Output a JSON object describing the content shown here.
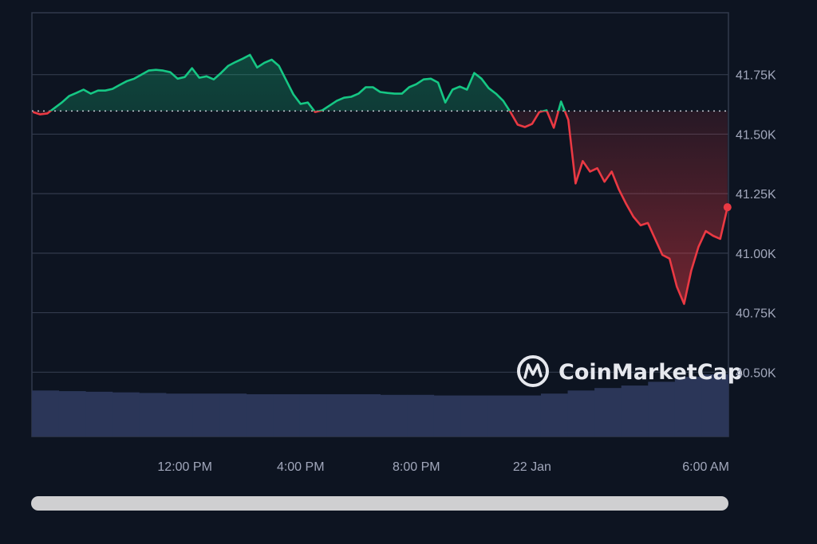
{
  "chart_data": {
    "type": "line",
    "title": "",
    "xlabel": "",
    "ylabel": "",
    "ylim": [
      40230,
      42010
    ],
    "y_ticks": [
      "41.75K",
      "41.50K",
      "41.25K",
      "41.00K",
      "40.75K",
      "40.50K"
    ],
    "y_tick_values": [
      41750,
      41500,
      41250,
      41000,
      40750,
      40500
    ],
    "x_ticks": [
      "12:00 PM",
      "4:00 PM",
      "8:00 PM",
      "22 Jan",
      "6:00 AM"
    ],
    "x_tick_times": [
      "21 Jan 12:00",
      "21 Jan 16:00",
      "21 Jan 20:00",
      "22 Jan 00:00",
      "22 Jan 06:00"
    ],
    "baseline": 41597,
    "grid": "horizontal",
    "colors": {
      "up": "#16c784",
      "down": "#ea3943",
      "volume": "#2b3658",
      "grid": "#323a4c",
      "background": "#0d1421"
    },
    "watermark": "CoinMarketCap",
    "series": [
      {
        "points": [
          [
            "21 Jan 06:45",
            41593
          ],
          [
            "21 Jan 07:00",
            41583
          ],
          [
            "21 Jan 07:15",
            41587
          ],
          [
            "21 Jan 07:30",
            41610
          ],
          [
            "21 Jan 07:45",
            41633
          ],
          [
            "21 Jan 08:00",
            41660
          ],
          [
            "21 Jan 08:15",
            41673
          ],
          [
            "21 Jan 08:30",
            41687
          ],
          [
            "21 Jan 08:45",
            41670
          ],
          [
            "21 Jan 09:00",
            41683
          ],
          [
            "21 Jan 09:15",
            41683
          ],
          [
            "21 Jan 09:30",
            41690
          ],
          [
            "21 Jan 09:45",
            41707
          ],
          [
            "21 Jan 10:00",
            41723
          ],
          [
            "21 Jan 10:15",
            41733
          ],
          [
            "21 Jan 10:30",
            41750
          ],
          [
            "21 Jan 10:45",
            41767
          ],
          [
            "21 Jan 11:00",
            41770
          ],
          [
            "21 Jan 11:15",
            41767
          ],
          [
            "21 Jan 11:30",
            41760
          ],
          [
            "21 Jan 11:45",
            41733
          ],
          [
            "21 Jan 12:00",
            41740
          ],
          [
            "21 Jan 12:15",
            41777
          ],
          [
            "21 Jan 12:30",
            41737
          ],
          [
            "21 Jan 12:45",
            41743
          ],
          [
            "21 Jan 13:00",
            41730
          ],
          [
            "21 Jan 13:15",
            41757
          ],
          [
            "21 Jan 13:30",
            41787
          ],
          [
            "21 Jan 13:45",
            41803
          ],
          [
            "21 Jan 14:00",
            41817
          ],
          [
            "21 Jan 14:15",
            41833
          ],
          [
            "21 Jan 14:30",
            41780
          ],
          [
            "21 Jan 14:45",
            41800
          ],
          [
            "21 Jan 15:00",
            41813
          ],
          [
            "21 Jan 15:15",
            41787
          ],
          [
            "21 Jan 15:30",
            41727
          ],
          [
            "21 Jan 15:45",
            41667
          ],
          [
            "21 Jan 16:00",
            41627
          ],
          [
            "21 Jan 16:15",
            41633
          ],
          [
            "21 Jan 16:30",
            41593
          ],
          [
            "21 Jan 16:45",
            41600
          ],
          [
            "21 Jan 17:00",
            41620
          ],
          [
            "21 Jan 17:15",
            41640
          ],
          [
            "21 Jan 17:30",
            41653
          ],
          [
            "21 Jan 17:45",
            41657
          ],
          [
            "21 Jan 18:00",
            41670
          ],
          [
            "21 Jan 18:15",
            41697
          ],
          [
            "21 Jan 18:30",
            41697
          ],
          [
            "21 Jan 18:45",
            41677
          ],
          [
            "21 Jan 19:00",
            41673
          ],
          [
            "21 Jan 19:15",
            41670
          ],
          [
            "21 Jan 19:30",
            41670
          ],
          [
            "21 Jan 19:45",
            41697
          ],
          [
            "21 Jan 20:00",
            41710
          ],
          [
            "21 Jan 20:15",
            41730
          ],
          [
            "21 Jan 20:30",
            41733
          ],
          [
            "21 Jan 20:45",
            41717
          ],
          [
            "21 Jan 21:00",
            41633
          ],
          [
            "21 Jan 21:15",
            41687
          ],
          [
            "21 Jan 21:30",
            41700
          ],
          [
            "21 Jan 21:45",
            41687
          ],
          [
            "21 Jan 22:00",
            41757
          ],
          [
            "21 Jan 22:15",
            41733
          ],
          [
            "21 Jan 22:30",
            41693
          ],
          [
            "21 Jan 22:45",
            41670
          ],
          [
            "21 Jan 23:00",
            41640
          ],
          [
            "21 Jan 23:15",
            41593
          ],
          [
            "21 Jan 23:30",
            41540
          ],
          [
            "21 Jan 23:45",
            41530
          ],
          [
            "22 Jan 00:00",
            41543
          ],
          [
            "22 Jan 00:15",
            41593
          ],
          [
            "22 Jan 00:30",
            41600
          ],
          [
            "22 Jan 00:45",
            41527
          ],
          [
            "22 Jan 01:00",
            41637
          ],
          [
            "22 Jan 01:15",
            41560
          ],
          [
            "22 Jan 01:30",
            41293
          ],
          [
            "22 Jan 01:45",
            41387
          ],
          [
            "22 Jan 02:00",
            41343
          ],
          [
            "22 Jan 02:15",
            41357
          ],
          [
            "22 Jan 02:30",
            41300
          ],
          [
            "22 Jan 02:45",
            41343
          ],
          [
            "22 Jan 03:00",
            41267
          ],
          [
            "22 Jan 03:15",
            41207
          ],
          [
            "22 Jan 03:30",
            41153
          ],
          [
            "22 Jan 03:45",
            41117
          ],
          [
            "22 Jan 04:00",
            41127
          ],
          [
            "22 Jan 04:15",
            41060
          ],
          [
            "22 Jan 04:30",
            40993
          ],
          [
            "22 Jan 04:45",
            40977
          ],
          [
            "22 Jan 05:00",
            40860
          ],
          [
            "22 Jan 05:15",
            40787
          ],
          [
            "22 Jan 05:30",
            40927
          ],
          [
            "22 Jan 05:45",
            41027
          ],
          [
            "22 Jan 06:00",
            41093
          ],
          [
            "22 Jan 06:15",
            41073
          ],
          [
            "22 Jan 06:30",
            41060
          ],
          [
            "22 Jan 06:45",
            41193
          ]
        ]
      }
    ],
    "volume_relative": [
      0.74,
      0.73,
      0.72,
      0.71,
      0.7,
      0.69,
      0.69,
      0.69,
      0.68,
      0.68,
      0.68,
      0.68,
      0.68,
      0.67,
      0.67,
      0.66,
      0.66,
      0.66,
      0.66,
      0.69,
      0.74,
      0.78,
      0.82,
      0.88,
      0.96,
      1.0
    ]
  }
}
